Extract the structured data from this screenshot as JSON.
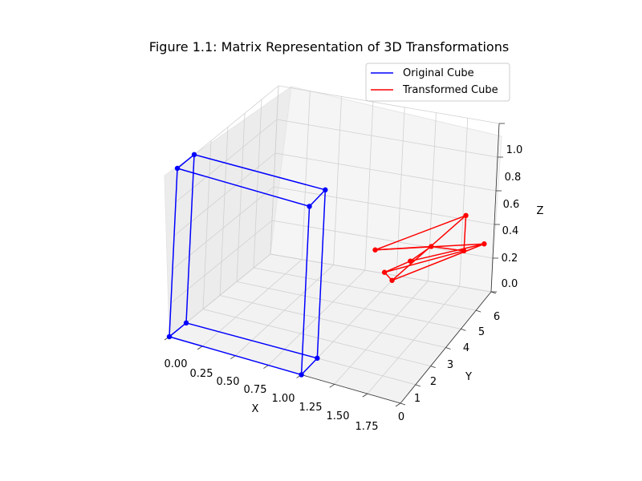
{
  "chart_data": {
    "type": "line3d",
    "title": "Figure 1.1: Matrix Representation of 3D Transformations",
    "xlabel": "X",
    "ylabel": "Y",
    "zlabel": "Z",
    "xlim": [
      0,
      1.75
    ],
    "ylim": [
      0,
      6
    ],
    "zlim": [
      0,
      1
    ],
    "xticks": [
      "0.00",
      "0.25",
      "0.50",
      "0.75",
      "1.00",
      "1.25",
      "1.50",
      "1.75"
    ],
    "yticks": [
      "0",
      "1",
      "2",
      "3",
      "4",
      "5",
      "6"
    ],
    "zticks": [
      "0.0",
      "0.2",
      "0.4",
      "0.6",
      "0.8",
      "1.0"
    ],
    "legend_position": "upper-right",
    "grid": true,
    "series": [
      {
        "name": "Original Cube",
        "color": "#0000ff",
        "vertices": [
          [
            0,
            0,
            0
          ],
          [
            1,
            0,
            0
          ],
          [
            1,
            1,
            0
          ],
          [
            0,
            1,
            0
          ],
          [
            0,
            0,
            1
          ],
          [
            1,
            0,
            1
          ],
          [
            1,
            1,
            1
          ],
          [
            0,
            1,
            1
          ]
        ]
      },
      {
        "name": "Transformed Cube",
        "color": "#ff0000",
        "vertices": [
          [
            1.2,
            4.0,
            0.2
          ],
          [
            1.7,
            5.8,
            0.3
          ],
          [
            1.0,
            4.5,
            0.3
          ],
          [
            1.5,
            6.2,
            0.4
          ],
          [
            1.15,
            3.9,
            0.25
          ],
          [
            1.3,
            4.3,
            0.3
          ],
          [
            1.4,
            4.8,
            0.35
          ],
          [
            1.6,
            5.3,
            0.3
          ]
        ]
      }
    ]
  }
}
